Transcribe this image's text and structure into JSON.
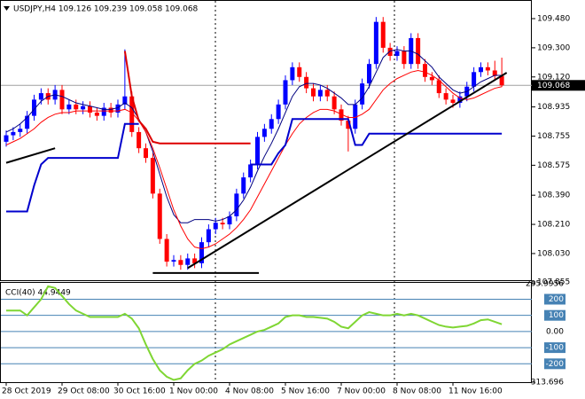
{
  "chart_data": [
    {
      "type": "candlestick",
      "title": "USDJPY,H4  109.126 109.239 109.058 109.068",
      "categories": [
        "28 Oct 2019",
        null,
        null,
        null,
        null,
        null,
        null,
        null,
        "29 Oct 08:00",
        null,
        null,
        null,
        null,
        null,
        null,
        null,
        "30 Oct 16:00",
        null,
        null,
        null,
        null,
        null,
        null,
        null,
        "1 Nov 00:00",
        null,
        null,
        null,
        null,
        null,
        null,
        null,
        "4 Nov 08:00",
        null,
        null,
        null,
        null,
        null,
        null,
        null,
        "5 Nov 16:00",
        null,
        null,
        null,
        null,
        null,
        null,
        null,
        "7 Nov 00:00",
        null,
        null,
        null,
        null,
        null,
        null,
        null,
        "8 Nov 08:00",
        null,
        null,
        null,
        null,
        null,
        null,
        null,
        "11 Nov 16:00",
        null,
        null,
        null,
        null,
        null,
        null,
        null
      ],
      "open": [
        108.72,
        108.76,
        108.78,
        108.8,
        108.88,
        108.98,
        109.02,
        108.98,
        109.04,
        108.92,
        108.95,
        108.92,
        108.94,
        108.9,
        108.88,
        108.93,
        108.9,
        108.95,
        109.0,
        108.78,
        108.68,
        108.62,
        108.4,
        108.12,
        107.98,
        107.99,
        107.96,
        108.0,
        107.97,
        108.1,
        108.18,
        108.22,
        108.21,
        108.26,
        108.4,
        108.5,
        108.58,
        108.75,
        108.8,
        108.86,
        108.95,
        109.1,
        109.18,
        109.12,
        109.05,
        109.0,
        109.04,
        109.0,
        108.92,
        108.85,
        108.8,
        108.95,
        109.08,
        109.2,
        109.46,
        109.3,
        109.25,
        109.28,
        109.2,
        109.36,
        109.2,
        109.12,
        109.1,
        109.02,
        108.98,
        108.96,
        109.0,
        109.06,
        109.15,
        109.18,
        109.16,
        109.126
      ],
      "high": [
        108.79,
        108.81,
        108.83,
        108.91,
        109.01,
        109.05,
        109.05,
        109.07,
        109.07,
        108.98,
        108.98,
        108.97,
        108.97,
        108.93,
        108.96,
        108.96,
        108.98,
        109.29,
        109.03,
        108.81,
        108.71,
        108.65,
        108.43,
        108.15,
        108.02,
        108.02,
        108.03,
        108.03,
        108.13,
        108.21,
        108.25,
        108.25,
        108.29,
        108.43,
        108.53,
        108.61,
        108.78,
        108.83,
        108.89,
        108.98,
        109.13,
        109.21,
        109.21,
        109.15,
        109.08,
        109.07,
        109.07,
        109.03,
        108.95,
        108.88,
        108.98,
        109.11,
        109.23,
        109.49,
        109.49,
        109.33,
        109.31,
        109.31,
        109.39,
        109.39,
        109.23,
        109.15,
        109.13,
        109.05,
        109.01,
        109.03,
        109.09,
        109.18,
        109.21,
        109.21,
        109.22,
        109.239
      ],
      "low": [
        108.69,
        108.73,
        108.75,
        108.77,
        108.85,
        108.95,
        108.95,
        108.95,
        108.89,
        108.89,
        108.89,
        108.89,
        108.87,
        108.85,
        108.85,
        108.87,
        108.87,
        108.92,
        108.75,
        108.65,
        108.59,
        108.37,
        108.09,
        107.95,
        107.95,
        107.93,
        107.93,
        107.94,
        107.94,
        108.07,
        108.15,
        108.18,
        108.18,
        108.23,
        108.37,
        108.47,
        108.55,
        108.72,
        108.77,
        108.83,
        108.92,
        109.07,
        109.09,
        109.02,
        108.97,
        108.97,
        108.97,
        108.89,
        108.82,
        108.66,
        108.77,
        108.92,
        109.05,
        109.17,
        109.27,
        109.22,
        109.22,
        109.17,
        109.17,
        109.17,
        109.09,
        109.07,
        108.99,
        108.95,
        108.93,
        108.93,
        108.97,
        109.03,
        109.12,
        109.13,
        109.1,
        109.058
      ],
      "close": [
        108.76,
        108.78,
        108.8,
        108.88,
        108.98,
        109.02,
        108.98,
        109.04,
        108.92,
        108.95,
        108.92,
        108.94,
        108.9,
        108.88,
        108.93,
        108.9,
        108.95,
        109.0,
        108.78,
        108.68,
        108.62,
        108.4,
        108.12,
        107.98,
        107.99,
        107.96,
        108.0,
        107.97,
        108.1,
        108.18,
        108.22,
        108.21,
        108.26,
        108.4,
        108.5,
        108.58,
        108.75,
        108.8,
        108.86,
        108.95,
        109.1,
        109.18,
        109.12,
        109.05,
        109.0,
        109.04,
        109.0,
        108.92,
        108.85,
        108.8,
        108.95,
        109.08,
        109.2,
        109.46,
        109.3,
        109.25,
        109.28,
        109.2,
        109.36,
        109.2,
        109.12,
        109.1,
        109.02,
        108.98,
        108.96,
        109.0,
        109.06,
        109.15,
        109.18,
        109.16,
        109.126,
        109.068
      ],
      "up_color": "#0000ff",
      "down_color": "#ff0000",
      "series": [
        {
          "color": "#000080",
          "width": 1,
          "values": [
            108.78,
            108.8,
            108.83,
            108.87,
            108.92,
            108.97,
            109.0,
            109.01,
            109.0,
            108.98,
            108.96,
            108.95,
            108.94,
            108.93,
            108.92,
            108.92,
            108.93,
            108.96,
            108.93,
            108.86,
            108.78,
            108.66,
            108.52,
            108.38,
            108.27,
            108.22,
            108.22,
            108.24,
            108.24,
            108.24,
            108.23,
            108.24,
            108.26,
            108.3,
            108.36,
            108.44,
            108.54,
            108.63,
            108.71,
            108.8,
            108.9,
            109.0,
            109.06,
            109.08,
            109.08,
            109.07,
            109.05,
            109.02,
            108.99,
            108.95,
            108.95,
            108.99,
            109.06,
            109.15,
            109.24,
            109.28,
            109.29,
            109.28,
            109.28,
            109.26,
            109.22,
            109.18,
            109.12,
            109.08,
            109.04,
            109.02,
            109.03,
            109.06,
            109.09,
            109.11,
            109.13,
            109.13
          ]
        },
        {
          "color": "#ff0000",
          "width": 1,
          "values": [
            108.7,
            108.72,
            108.74,
            108.77,
            108.8,
            108.84,
            108.87,
            108.89,
            108.9,
            108.9,
            108.91,
            108.91,
            108.91,
            108.91,
            108.91,
            108.91,
            108.91,
            108.92,
            108.9,
            108.85,
            108.78,
            108.68,
            108.56,
            108.43,
            108.3,
            108.2,
            108.12,
            108.07,
            108.06,
            108.07,
            108.09,
            108.12,
            108.15,
            108.19,
            108.24,
            108.3,
            108.38,
            108.46,
            108.54,
            108.62,
            108.7,
            108.77,
            108.83,
            108.87,
            108.9,
            108.92,
            108.92,
            108.91,
            108.89,
            108.87,
            108.87,
            108.89,
            108.92,
            108.98,
            109.04,
            109.08,
            109.11,
            109.13,
            109.15,
            109.16,
            109.15,
            109.13,
            109.1,
            109.06,
            109.02,
            108.99,
            108.98,
            108.99,
            109.01,
            109.03,
            109.05,
            109.06
          ]
        },
        {
          "color": "#0000cd",
          "width": 2,
          "values": [
            108.29,
            108.29,
            108.29,
            108.29,
            108.45,
            108.58,
            108.62,
            108.62,
            108.62,
            108.62,
            108.62,
            108.62,
            108.62,
            108.62,
            108.62,
            108.62,
            108.62,
            108.83,
            108.83,
            108.83,
            null,
            null,
            null,
            null,
            null,
            null,
            null,
            null,
            null,
            null,
            null,
            null,
            null,
            null,
            null,
            108.58,
            108.58,
            108.58,
            108.58,
            108.65,
            108.7,
            108.86,
            108.86,
            108.86,
            108.86,
            108.86,
            108.86,
            108.86,
            108.86,
            108.86,
            108.7,
            108.7,
            108.77,
            108.77,
            108.77,
            108.77,
            108.77,
            108.77,
            108.77,
            108.77,
            108.77,
            108.77,
            108.77,
            108.77,
            108.77,
            108.77,
            108.77,
            108.77,
            108.77,
            108.77,
            108.77,
            108.77
          ]
        },
        {
          "color": "#dd0000",
          "width": 2,
          "values": [
            null,
            null,
            null,
            null,
            null,
            null,
            null,
            null,
            null,
            null,
            null,
            null,
            null,
            null,
            null,
            null,
            null,
            109.28,
            109.0,
            108.85,
            108.8,
            108.72,
            108.71,
            108.71,
            108.71,
            108.71,
            108.71,
            108.71,
            108.71,
            108.71,
            108.71,
            108.71,
            108.71,
            108.71,
            108.71,
            108.71,
            null,
            null,
            null,
            null,
            null,
            null,
            null,
            null,
            null,
            null,
            null,
            null,
            null,
            null,
            null,
            null,
            null,
            null,
            null,
            null,
            null,
            null,
            null,
            null,
            null,
            null,
            null,
            null,
            null,
            null,
            null,
            null,
            null,
            null,
            null,
            null
          ]
        }
      ],
      "lines": [
        {
          "color": "#000000",
          "x": [
            0,
            7
          ],
          "values": [
            108.59,
            108.68
          ]
        },
        {
          "color": "#000000",
          "x": [
            26,
            71.7
          ],
          "values": [
            107.94,
            109.146
          ]
        },
        {
          "color": "#000000",
          "x": [
            21,
            36.2
          ],
          "values": [
            107.91,
            107.91
          ]
        }
      ],
      "last_price": 109.068,
      "ylim": [
        107.871,
        109.584
      ],
      "yticks": [
        {
          "value": 109.48,
          "label": "109.480"
        },
        {
          "value": 109.3,
          "label": "109.300"
        },
        {
          "value": 109.12,
          "label": "109.120"
        },
        108.935,
        108.755,
        108.575,
        {
          "value": 108.39,
          "label": "108.390"
        },
        {
          "value": 108.21,
          "label": "108.210"
        },
        {
          "value": 108.03,
          "label": "108.030"
        },
        107.855
      ]
    },
    {
      "type": "line",
      "title": "CCI(40) 44.9449",
      "color": "#7fd633",
      "level_color": "#4682b4",
      "values": [
        130,
        130,
        130,
        100,
        150,
        200,
        280,
        270,
        220,
        170,
        130,
        110,
        90,
        90,
        90,
        90,
        90,
        110,
        80,
        20,
        -80,
        -170,
        -240,
        -280,
        -300,
        -290,
        -240,
        -200,
        -180,
        -150,
        -130,
        -110,
        -80,
        -60,
        -40,
        -20,
        0,
        10,
        30,
        50,
        90,
        100,
        100,
        90,
        90,
        85,
        80,
        60,
        30,
        20,
        60,
        100,
        120,
        110,
        100,
        100,
        110,
        100,
        110,
        100,
        80,
        60,
        40,
        30,
        25,
        30,
        35,
        50,
        70,
        75,
        60,
        44.9449
      ],
      "ylim": [
        -313.696,
        295.9956
      ],
      "yticks": [
        295.9956,
        200,
        100,
        {
          "value": 0,
          "label": "0.00"
        },
        -100,
        -200,
        -313.696
      ]
    }
  ]
}
